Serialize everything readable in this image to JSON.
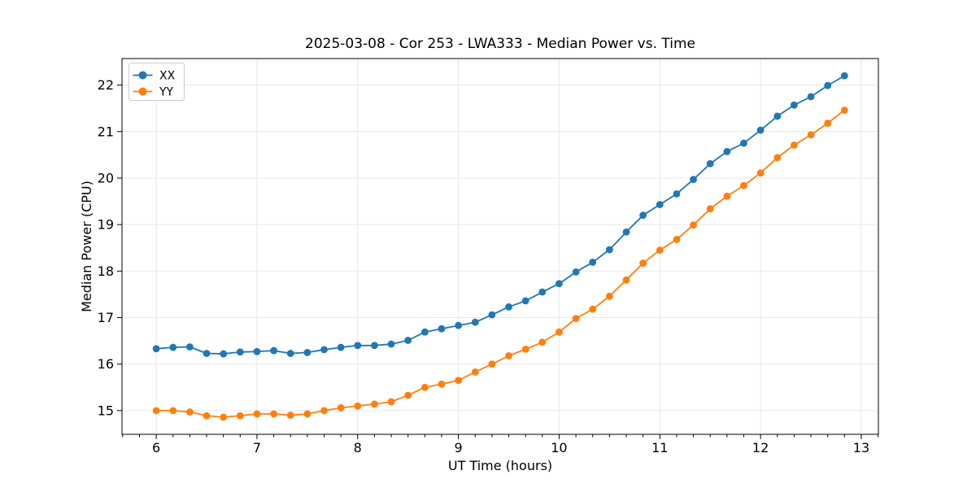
{
  "chart_data": {
    "type": "line",
    "title": "2025-03-08 - Cor 253 - LWA333 - Median Power vs. Time",
    "xlabel": "UT Time (hours)",
    "ylabel": "Median Power (CPU)",
    "xlim": [
      5.66,
      13.17
    ],
    "ylim": [
      14.49,
      22.57
    ],
    "x_major_ticks": [
      6,
      7,
      8,
      9,
      10,
      11,
      12,
      13
    ],
    "y_major_ticks": [
      15,
      16,
      17,
      18,
      19,
      20,
      21,
      22
    ],
    "x_minor_tick_interval_hours": 0.1667,
    "grid": "major-only",
    "grid_color": "#e7e7e7",
    "legend_position": "upper-left",
    "marker": "circle",
    "x": [
      6.0,
      6.167,
      6.333,
      6.5,
      6.667,
      6.833,
      7.0,
      7.167,
      7.333,
      7.5,
      7.667,
      7.833,
      8.0,
      8.167,
      8.333,
      8.5,
      8.667,
      8.833,
      9.0,
      9.167,
      9.333,
      9.5,
      9.667,
      9.833,
      10.0,
      10.167,
      10.333,
      10.5,
      10.667,
      10.833,
      11.0,
      11.167,
      11.333,
      11.5,
      11.667,
      11.833,
      12.0,
      12.167,
      12.333,
      12.5,
      12.667,
      12.833
    ],
    "series": [
      {
        "name": "XX",
        "color": "#1f77b4",
        "values": [
          16.33,
          16.36,
          16.37,
          16.23,
          16.22,
          16.26,
          16.27,
          16.29,
          16.23,
          16.25,
          16.31,
          16.36,
          16.4,
          16.4,
          16.43,
          16.51,
          16.69,
          16.76,
          16.83,
          16.9,
          17.06,
          17.23,
          17.36,
          17.55,
          17.73,
          17.98,
          18.19,
          18.46,
          18.84,
          19.2,
          19.43,
          19.66,
          19.97,
          20.31,
          20.57,
          20.75,
          21.03,
          21.33,
          21.57,
          21.75,
          21.99,
          22.2
        ]
      },
      {
        "name": "YY",
        "color": "#ff7f0e",
        "values": [
          15.0,
          15.0,
          14.97,
          14.89,
          14.86,
          14.89,
          14.93,
          14.93,
          14.9,
          14.93,
          15.0,
          15.06,
          15.1,
          15.14,
          15.19,
          15.33,
          15.5,
          15.57,
          15.65,
          15.83,
          16.0,
          16.18,
          16.32,
          16.47,
          16.69,
          16.98,
          17.18,
          17.46,
          17.81,
          18.17,
          18.45,
          18.68,
          18.99,
          19.34,
          19.61,
          19.84,
          20.11,
          20.44,
          20.71,
          20.93,
          21.18,
          21.46
        ]
      }
    ]
  }
}
